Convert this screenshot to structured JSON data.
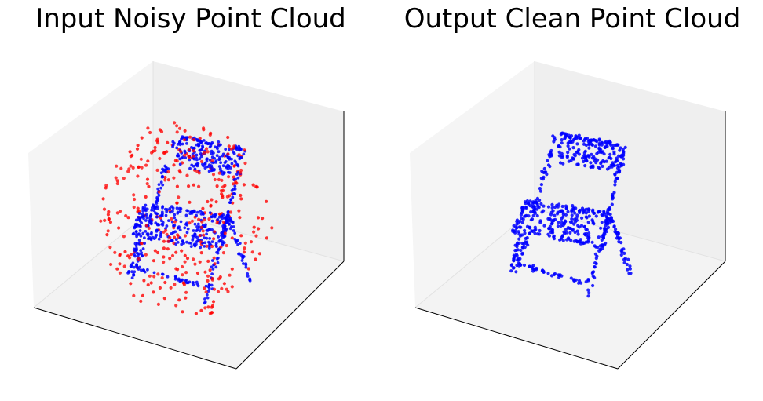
{
  "chart_data": [
    {
      "type": "scatter",
      "title": "Input Noisy Point Cloud",
      "projection": "3d",
      "grid": false,
      "axis_ticks": false,
      "pane_colors": {
        "left": "#f5f5f5",
        "back": "#efefef",
        "floor": "#f3f3f3"
      },
      "series": [
        {
          "color": "#0000ff",
          "shape": "folding chair",
          "noise": false
        },
        {
          "color": "#ff0000",
          "shape": "scattered noise points",
          "noise": true
        }
      ]
    },
    {
      "type": "scatter",
      "title": "Output Clean Point Cloud",
      "projection": "3d",
      "grid": false,
      "axis_ticks": false,
      "pane_colors": {
        "left": "#f5f5f5",
        "back": "#efefef",
        "floor": "#f3f3f3"
      },
      "series": [
        {
          "color": "#0000ff",
          "shape": "folding chair",
          "noise": false
        }
      ]
    }
  ]
}
